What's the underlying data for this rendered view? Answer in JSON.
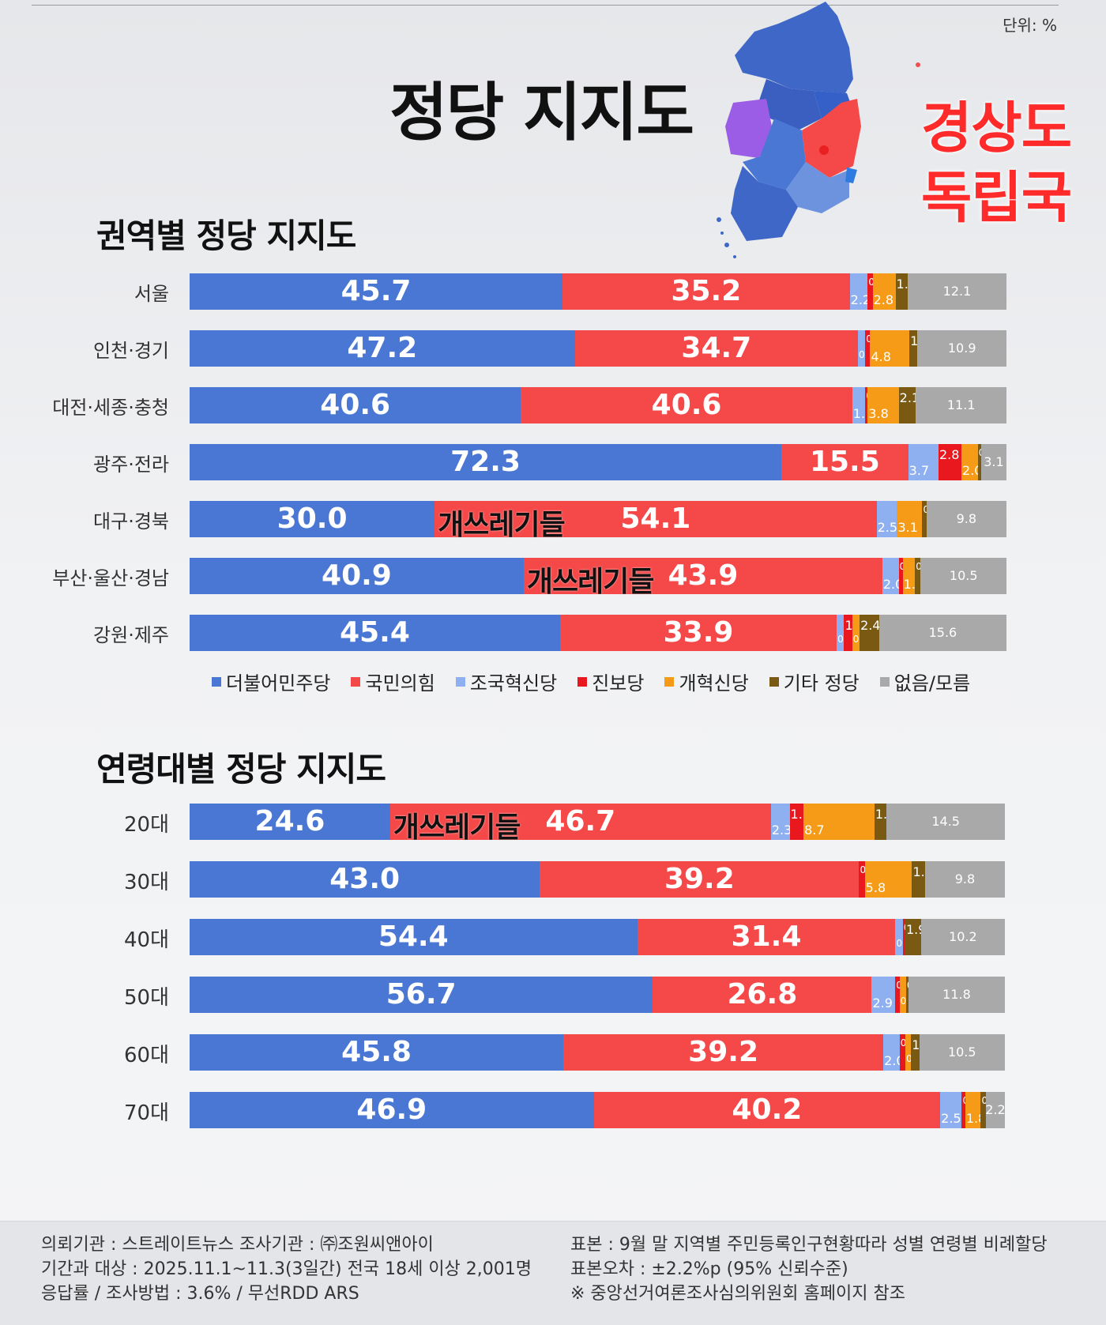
{
  "unit": "단위: %",
  "title": "정당 지지도",
  "overlay_lines": [
    "경상도",
    "독립국"
  ],
  "colors": {
    "더불어민주당": "#4a77d4",
    "국민의힘": "#f54848",
    "조국혁신당": "#8fb0f0",
    "진보당": "#e8181e",
    "개혁신당": "#f69b17",
    "기타 정당": "#7a5a12",
    "없음/모름": "#a9a9a9"
  },
  "chart_data": [
    {
      "type": "bar",
      "stacked": true,
      "orientation": "horizontal",
      "title": "권역별 정당 지지도",
      "categories": [
        "서울",
        "인천·경기",
        "대전·세종·충청",
        "광주·전라",
        "대구·경북",
        "부산·울산·경남",
        "강원·제주"
      ],
      "series": [
        {
          "name": "더불어민주당",
          "values": [
            45.7,
            47.2,
            40.6,
            72.3,
            30.0,
            40.9,
            45.4
          ]
        },
        {
          "name": "국민의힘",
          "values": [
            35.2,
            34.7,
            40.6,
            15.5,
            54.1,
            43.9,
            33.9
          ]
        },
        {
          "name": "조국혁신당",
          "values": [
            2.2,
            0.9,
            1.6,
            3.7,
            2.5,
            2.0,
            0.9
          ]
        },
        {
          "name": "진보당",
          "values": [
            0.6,
            0.6,
            0.3,
            2.8,
            0.0,
            0.5,
            1.0
          ]
        },
        {
          "name": "개혁신당",
          "values": [
            2.8,
            4.8,
            3.8,
            2.0,
            3.1,
            1.5,
            0.9
          ]
        },
        {
          "name": "기타 정당",
          "values": [
            1.5,
            1.0,
            2.1,
            0.4,
            0.5,
            0.7,
            2.4
          ]
        },
        {
          "name": "없음/모름",
          "values": [
            12.1,
            10.9,
            11.1,
            3.1,
            9.8,
            10.5,
            15.6
          ]
        }
      ],
      "annotations": [
        {
          "category": "대구·경북",
          "text": "개쓰레기들"
        },
        {
          "category": "부산·울산·경남",
          "text": "개쓰레기들"
        }
      ],
      "legend": "bottom"
    },
    {
      "type": "bar",
      "stacked": true,
      "orientation": "horizontal",
      "title": "연령대별 정당 지지도",
      "categories": [
        "20대",
        "30대",
        "40대",
        "50대",
        "60대",
        "70대"
      ],
      "series": [
        {
          "name": "더불어민주당",
          "values": [
            24.6,
            43.0,
            54.4,
            56.7,
            45.8,
            46.9
          ]
        },
        {
          "name": "국민의힘",
          "values": [
            46.7,
            39.2,
            31.4,
            26.8,
            39.2,
            40.2
          ]
        },
        {
          "name": "조국혁신당",
          "values": [
            2.3,
            0.0,
            0.9,
            2.9,
            2.0,
            2.5
          ]
        },
        {
          "name": "진보당",
          "values": [
            1.7,
            0.7,
            0.3,
            0.5,
            0.7,
            0.4
          ]
        },
        {
          "name": "개혁신당",
          "values": [
            8.7,
            5.8,
            0.0,
            0.8,
            0.7,
            1.8
          ]
        },
        {
          "name": "기타 정당",
          "values": [
            1.5,
            1.6,
            1.9,
            0.3,
            1.0,
            0.6
          ]
        },
        {
          "name": "없음/모름",
          "values": [
            14.5,
            9.8,
            10.2,
            11.8,
            10.5,
            2.2
          ]
        }
      ],
      "annotations": [
        {
          "category": "20대",
          "text": "개쓰레기들"
        }
      ]
    }
  ],
  "footer": {
    "left": [
      "의뢰기관 : 스트레이트뉴스        조사기관 : ㈜조원씨앤아이",
      "기간과 대상 : 2025.11.1~11.3(3일간)   전국 18세 이상  2,001명",
      "응답률 / 조사방법 : 3.6% / 무선RDD ARS"
    ],
    "right": [
      "표본 : 9월 말 지역별 주민등록인구현황따라 성별 연령별 비례할당",
      "표본오차 : ±2.2%p (95% 신뢰수준)",
      "※ 중앙선거여론조사심의위원회 홈페이지 참조"
    ]
  }
}
